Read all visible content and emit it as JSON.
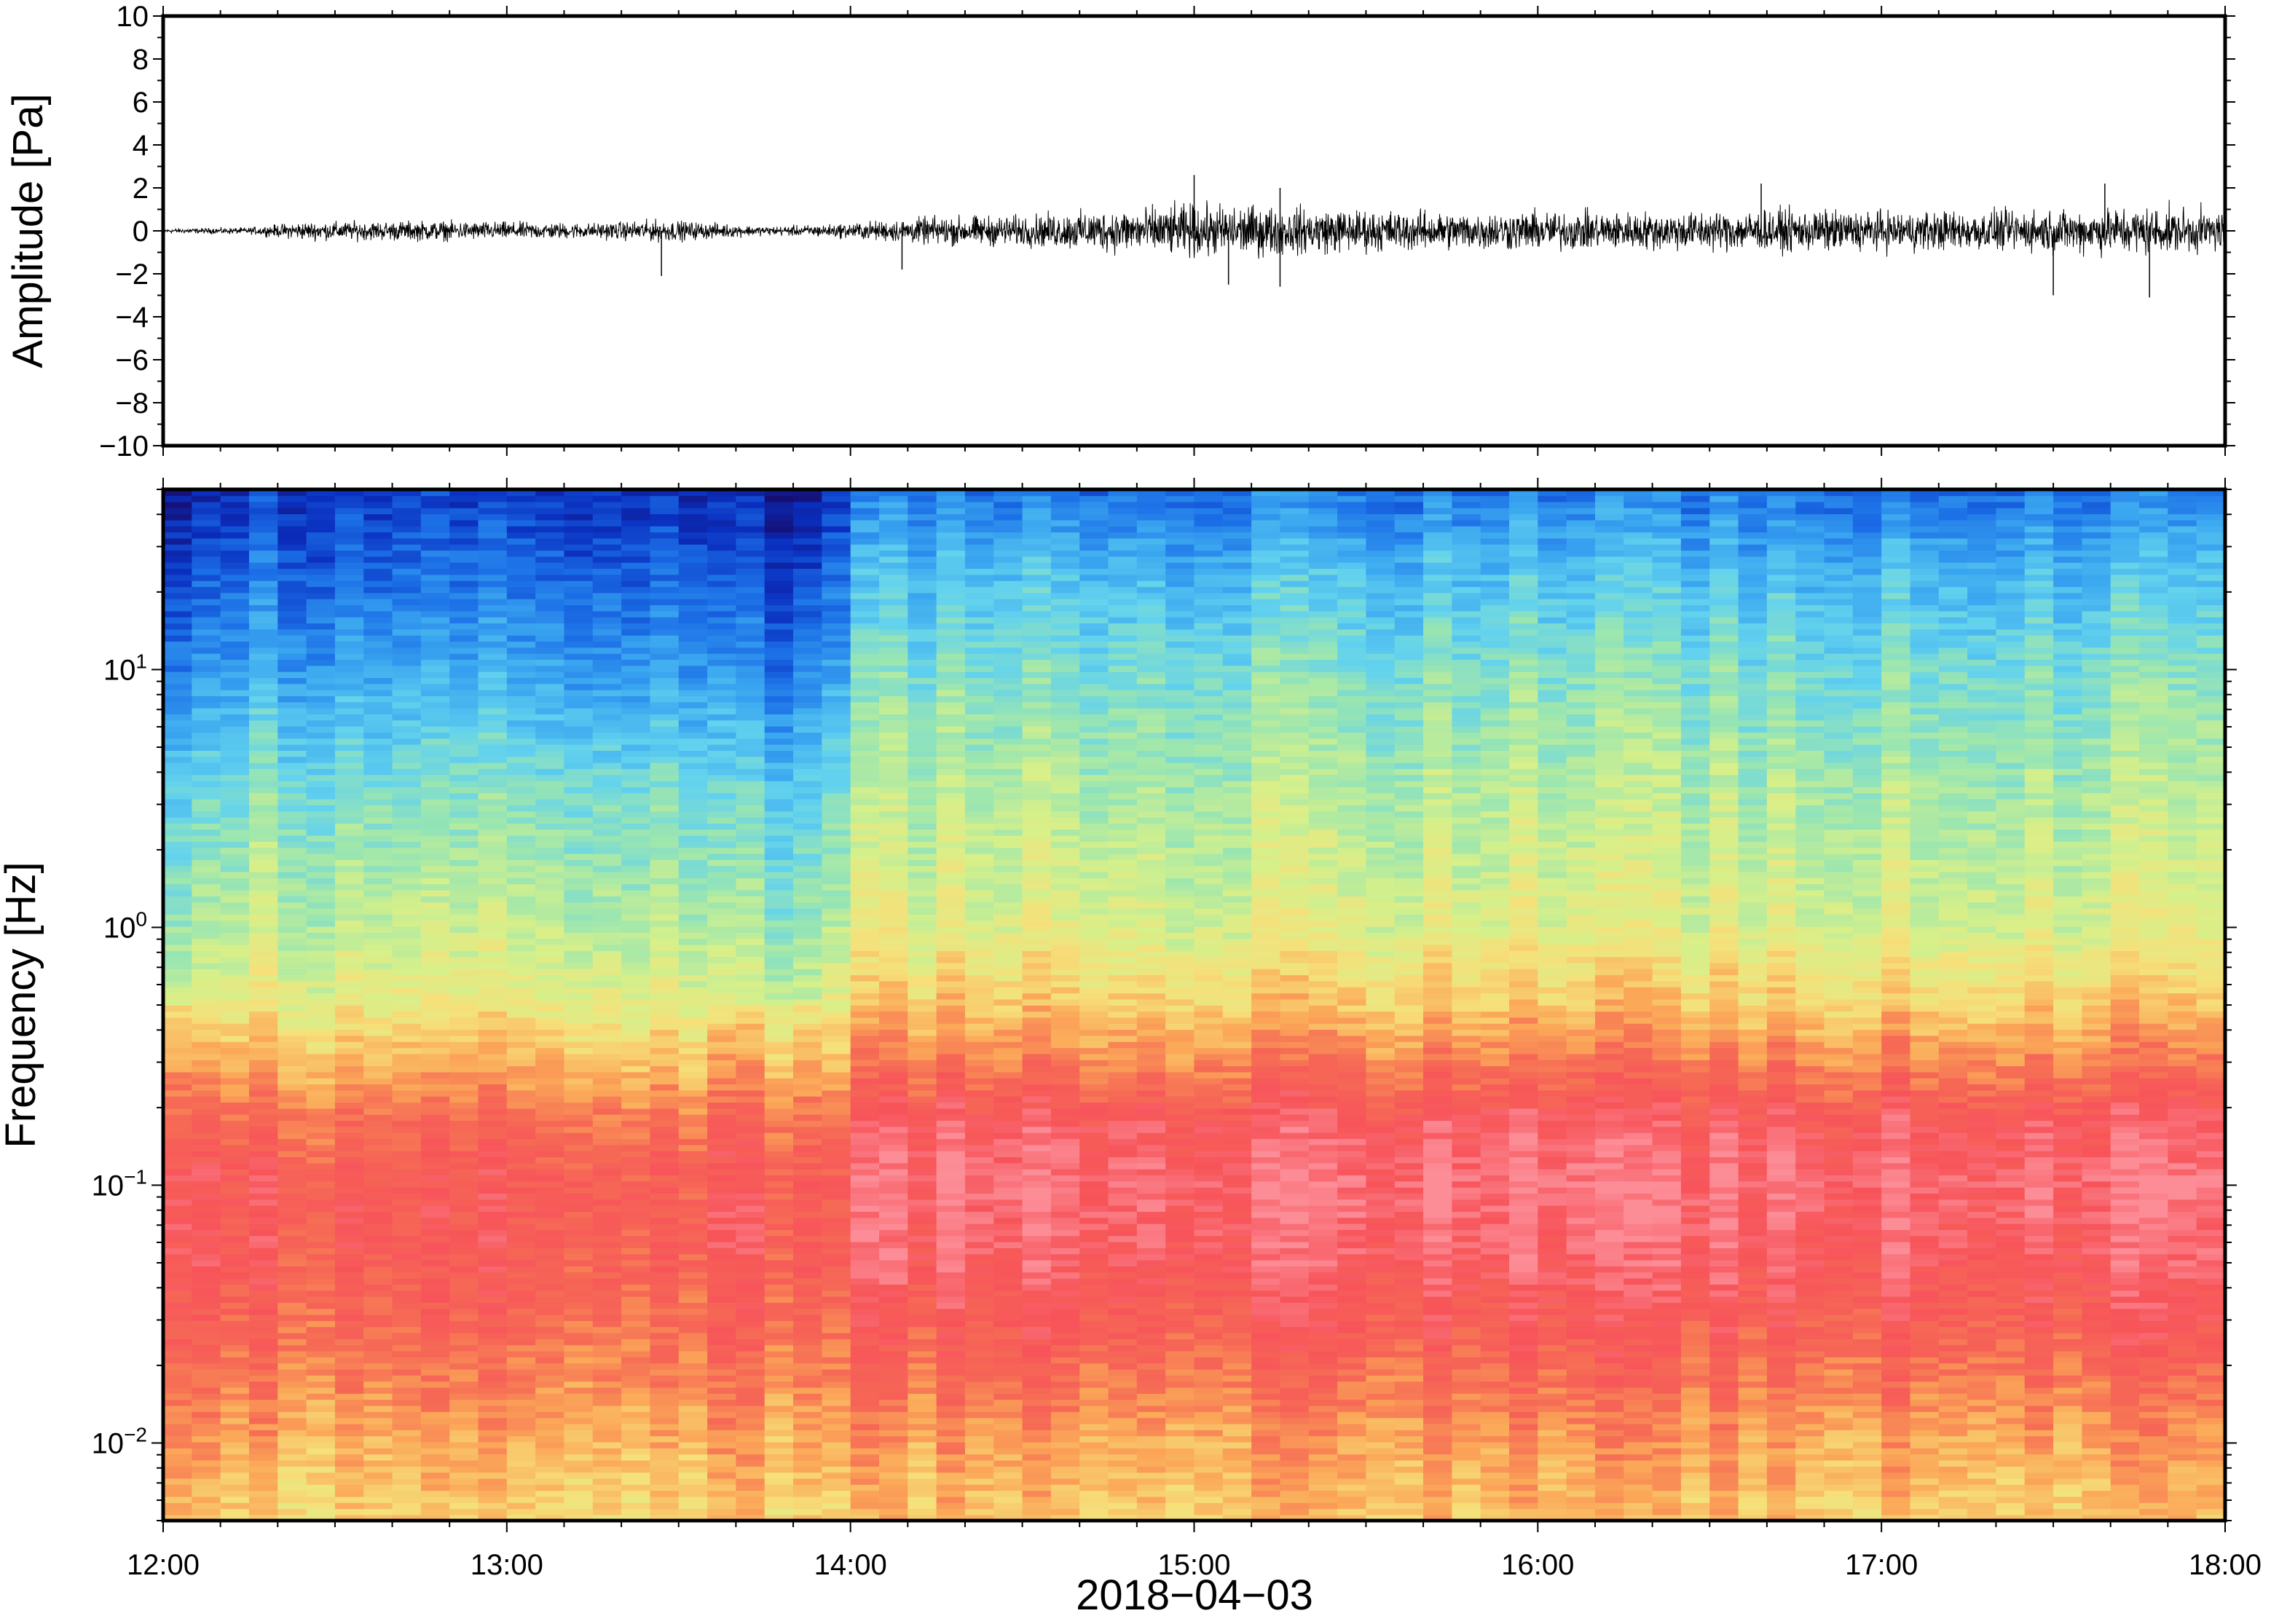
{
  "chart_data": [
    {
      "type": "line",
      "panel": "waveform",
      "title": "",
      "ylabel": "Amplitude [Pa]",
      "xlabel": "",
      "ylim": [
        -10,
        10
      ],
      "y_ticks": [
        10,
        8,
        6,
        4,
        2,
        0,
        -2,
        -4,
        -6,
        -8,
        -10
      ],
      "y_tick_labels": [
        "10",
        "8",
        "6",
        "4",
        "2",
        "0",
        "−2",
        "−4",
        "−6",
        "−8",
        "−10"
      ],
      "xlim": [
        "12:00",
        "18:00"
      ],
      "grid": false,
      "series_color": "#000000",
      "envelope": {
        "description_hours": [
          12.0,
          12.25,
          12.4,
          12.75,
          13.0,
          13.25,
          13.45,
          13.75,
          13.95,
          14.25,
          14.5,
          14.75,
          15.0,
          15.25,
          15.5,
          15.75,
          16.0,
          16.25,
          16.5,
          16.75,
          17.0,
          17.25,
          17.5,
          17.75,
          18.0
        ],
        "x": [
          12.0,
          12.25,
          12.4,
          12.75,
          13.0,
          13.25,
          13.45,
          13.75,
          13.95,
          14.25,
          14.5,
          14.75,
          15.0,
          15.25,
          15.5,
          15.75,
          16.0,
          16.25,
          16.5,
          16.75,
          17.0,
          17.25,
          17.5,
          17.75,
          18.0
        ],
        "max_amplitude": [
          0.2,
          0.3,
          0.8,
          0.9,
          0.8,
          0.7,
          1.0,
          0.4,
          0.6,
          1.3,
          1.4,
          1.9,
          2.4,
          2.2,
          1.9,
          1.7,
          1.8,
          1.7,
          1.8,
          1.9,
          1.8,
          1.8,
          1.9,
          2.2,
          1.8
        ],
        "peaks": [
          {
            "x": 13.45,
            "y": -2.1
          },
          {
            "x": 14.15,
            "y": -1.8
          },
          {
            "x": 15.0,
            "y": 2.6
          },
          {
            "x": 15.1,
            "y": -2.5
          },
          {
            "x": 15.25,
            "y": 2.0
          },
          {
            "x": 15.25,
            "y": -2.6
          },
          {
            "x": 16.65,
            "y": 2.2
          },
          {
            "x": 17.5,
            "y": -3.0
          },
          {
            "x": 17.65,
            "y": 2.2
          },
          {
            "x": 17.78,
            "y": -3.1
          }
        ]
      }
    },
    {
      "type": "heatmap",
      "panel": "spectrogram",
      "title": "",
      "ylabel": "Frequency [Hz]",
      "xlabel": "2018−04−03",
      "y_scale": "log",
      "ylim": [
        0.005,
        50
      ],
      "y_ticks": [
        0.01,
        0.1,
        1,
        10
      ],
      "y_tick_labels": [
        {
          "base": "10",
          "exp": "−2"
        },
        {
          "base": "10",
          "exp": "−1"
        },
        {
          "base": "10",
          "exp": "0"
        },
        {
          "base": "10",
          "exp": "1"
        }
      ],
      "xlim": [
        "12:00",
        "18:00"
      ],
      "x_ticks": [
        12,
        13,
        14,
        15,
        16,
        17,
        18
      ],
      "x_tick_labels": [
        "12:00",
        "13:00",
        "14:00",
        "15:00",
        "16:00",
        "17:00",
        "18:00"
      ],
      "colormap": [
        "#160f73",
        "#0a2fbf",
        "#1b6ee6",
        "#3aa6f0",
        "#62d2ee",
        "#9be6b0",
        "#d6f08a",
        "#f6e07a",
        "#fba858",
        "#f66a55",
        "#f7545a",
        "#fc8c96"
      ],
      "intensity_profile": {
        "log10_frequency": [
          -2.3,
          -2.0,
          -1.6,
          -1.3,
          -1.0,
          -0.75,
          -0.5,
          -0.3,
          0.0,
          0.5,
          1.0,
          1.4,
          1.7
        ],
        "relative_level_before_14h": [
          0.66,
          0.72,
          0.82,
          0.87,
          0.88,
          0.82,
          0.7,
          0.6,
          0.52,
          0.43,
          0.28,
          0.18,
          0.1
        ],
        "relative_level_after_14h": [
          0.68,
          0.74,
          0.86,
          0.93,
          0.97,
          0.92,
          0.78,
          0.68,
          0.57,
          0.5,
          0.42,
          0.32,
          0.2
        ]
      }
    }
  ]
}
